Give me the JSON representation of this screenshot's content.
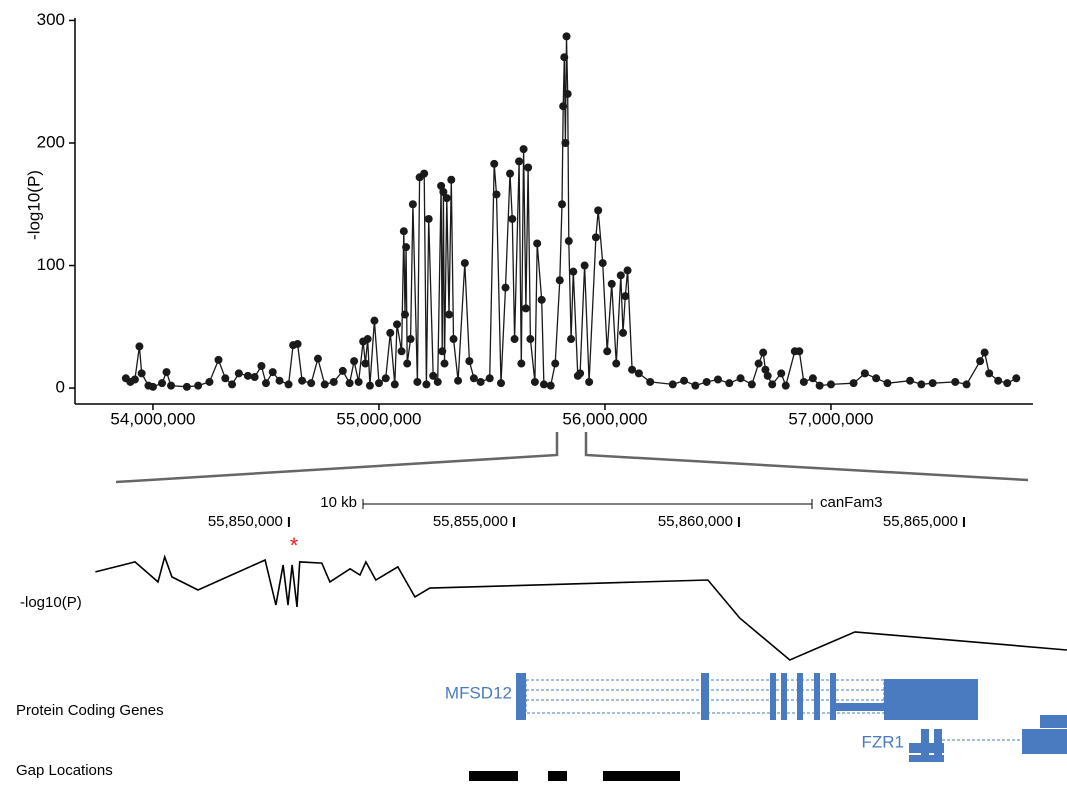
{
  "chart_data": [
    {
      "type": "scatter-line",
      "y_label": "-log10(P)",
      "color": "#1a1a1a",
      "x": [
        53880000,
        53900000,
        53920000,
        53940000,
        53950000,
        53980000,
        54000000,
        54040000,
        54060000,
        54080000,
        54150000,
        54200000,
        54250000,
        54290000,
        54320000,
        54350000,
        54380000,
        54420000,
        54450000,
        54480000,
        54500000,
        54530000,
        54560000,
        54600000,
        54620000,
        54640000,
        54660000,
        54700000,
        54730000,
        54760000,
        54800000,
        54840000,
        54870000,
        54890000,
        54910000,
        54930000,
        54940000,
        54950000,
        54960000,
        54980000,
        55000000,
        55030000,
        55050000,
        55070000,
        55080000,
        55100000,
        55110000,
        55115000,
        55120000,
        55125000,
        55140000,
        55150000,
        55170000,
        55180000,
        55200000,
        55210000,
        55220000,
        55240000,
        55260000,
        55275000,
        55280000,
        55285000,
        55290000,
        55300000,
        55310000,
        55320000,
        55330000,
        55350000,
        55380000,
        55400000,
        55420000,
        55450000,
        55490000,
        55510000,
        55520000,
        55540000,
        55560000,
        55580000,
        55590000,
        55600000,
        55620000,
        55630000,
        55640000,
        55650000,
        55660000,
        55670000,
        55690000,
        55700000,
        55720000,
        55730000,
        55760000,
        55780000,
        55800000,
        55810000,
        55815000,
        55820000,
        55825000,
        55830000,
        55835000,
        55840000,
        55850000,
        55860000,
        55880000,
        55890000,
        55910000,
        55930000,
        55960000,
        55970000,
        55990000,
        56010000,
        56030000,
        56050000,
        56070000,
        56080000,
        56090000,
        56100000,
        56120000,
        56150000,
        56200000,
        56300000,
        56350000,
        56400000,
        56450000,
        56500000,
        56550000,
        56600000,
        56650000,
        56680000,
        56700000,
        56710000,
        56720000,
        56740000,
        56780000,
        56800000,
        56840000,
        56860000,
        56880000,
        56920000,
        56950000,
        57000000,
        57100000,
        57150000,
        57200000,
        57250000,
        57350000,
        57400000,
        57450000,
        57550000,
        57600000,
        57660000,
        57680000,
        57700000,
        57740000,
        57780000,
        57820000
      ],
      "values": [
        8,
        5,
        7,
        34,
        12,
        2,
        1,
        4,
        13,
        2,
        1,
        2,
        5,
        23,
        8,
        3,
        12,
        10,
        9,
        18,
        4,
        13,
        6,
        3,
        35,
        36,
        6,
        4,
        24,
        3,
        5,
        14,
        4,
        22,
        5,
        38,
        20,
        40,
        2,
        55,
        4,
        8,
        45,
        3,
        52,
        30,
        128,
        60,
        115,
        20,
        40,
        150,
        5,
        172,
        175,
        3,
        138,
        10,
        5,
        165,
        30,
        160,
        20,
        155,
        60,
        170,
        40,
        6,
        102,
        22,
        8,
        5,
        8,
        183,
        158,
        4,
        82,
        175,
        138,
        40,
        185,
        20,
        195,
        65,
        180,
        40,
        5,
        118,
        72,
        3,
        2,
        20,
        88,
        150,
        230,
        270,
        200,
        287,
        240,
        120,
        40,
        95,
        10,
        12,
        100,
        5,
        123,
        145,
        102,
        30,
        85,
        20,
        92,
        45,
        75,
        96,
        15,
        12,
        5,
        3,
        6,
        2,
        5,
        7,
        4,
        8,
        3,
        20,
        29,
        15,
        10,
        3,
        12,
        2,
        30,
        30,
        5,
        8,
        2,
        3,
        4,
        12,
        8,
        4,
        6,
        3,
        4,
        5,
        3,
        22,
        29,
        12,
        6,
        4,
        8
      ],
      "xlim": [
        53655000,
        57894000
      ],
      "ylim": [
        -13,
        302
      ],
      "xticks": [
        {
          "value": 54000000,
          "label": "54,000,000"
        },
        {
          "value": 55000000,
          "label": "55,000,000"
        },
        {
          "value": 56000000,
          "label": "56,000,000"
        },
        {
          "value": 57000000,
          "label": "57,000,000"
        }
      ],
      "yticks": [
        0,
        100,
        200,
        300
      ]
    },
    {
      "type": "line",
      "y_label": "-log10(P)",
      "color": "#000000",
      "x": [
        55845700,
        55846580,
        55847090,
        55847240,
        55847400,
        55847980,
        55849470,
        55849710,
        55849870,
        55849980,
        55850070,
        55850180,
        55850240,
        55850730,
        55850910,
        55851360,
        55851580,
        55851710,
        55851930,
        55852420,
        55852800,
        55853130,
        55859310,
        55860020,
        55861130,
        55862580,
        55867290
      ],
      "values": [
        257,
        273,
        241,
        281,
        249,
        228,
        276,
        204,
        268,
        204,
        268,
        201,
        273,
        271,
        241,
        262,
        252,
        273,
        244,
        265,
        217,
        231,
        244,
        183,
        116,
        161,
        132
      ],
      "xlim": [
        55843580,
        55867290
      ],
      "ylim": [
        100,
        300
      ],
      "xticks": [
        {
          "value": 55850000,
          "label": "55,850,000"
        },
        {
          "value": 55855000,
          "label": "55,855,000"
        },
        {
          "value": 55860000,
          "label": "55,860,000"
        },
        {
          "value": 55865000,
          "label": "55,865,000"
        }
      ],
      "scale_label": "10 kb",
      "assembly": "canFam3",
      "annotation": "*",
      "track_labels": [
        "Protein Coding Genes",
        "Gap Locations"
      ],
      "genes": [
        "MFSD12",
        "FZR1"
      ]
    }
  ]
}
